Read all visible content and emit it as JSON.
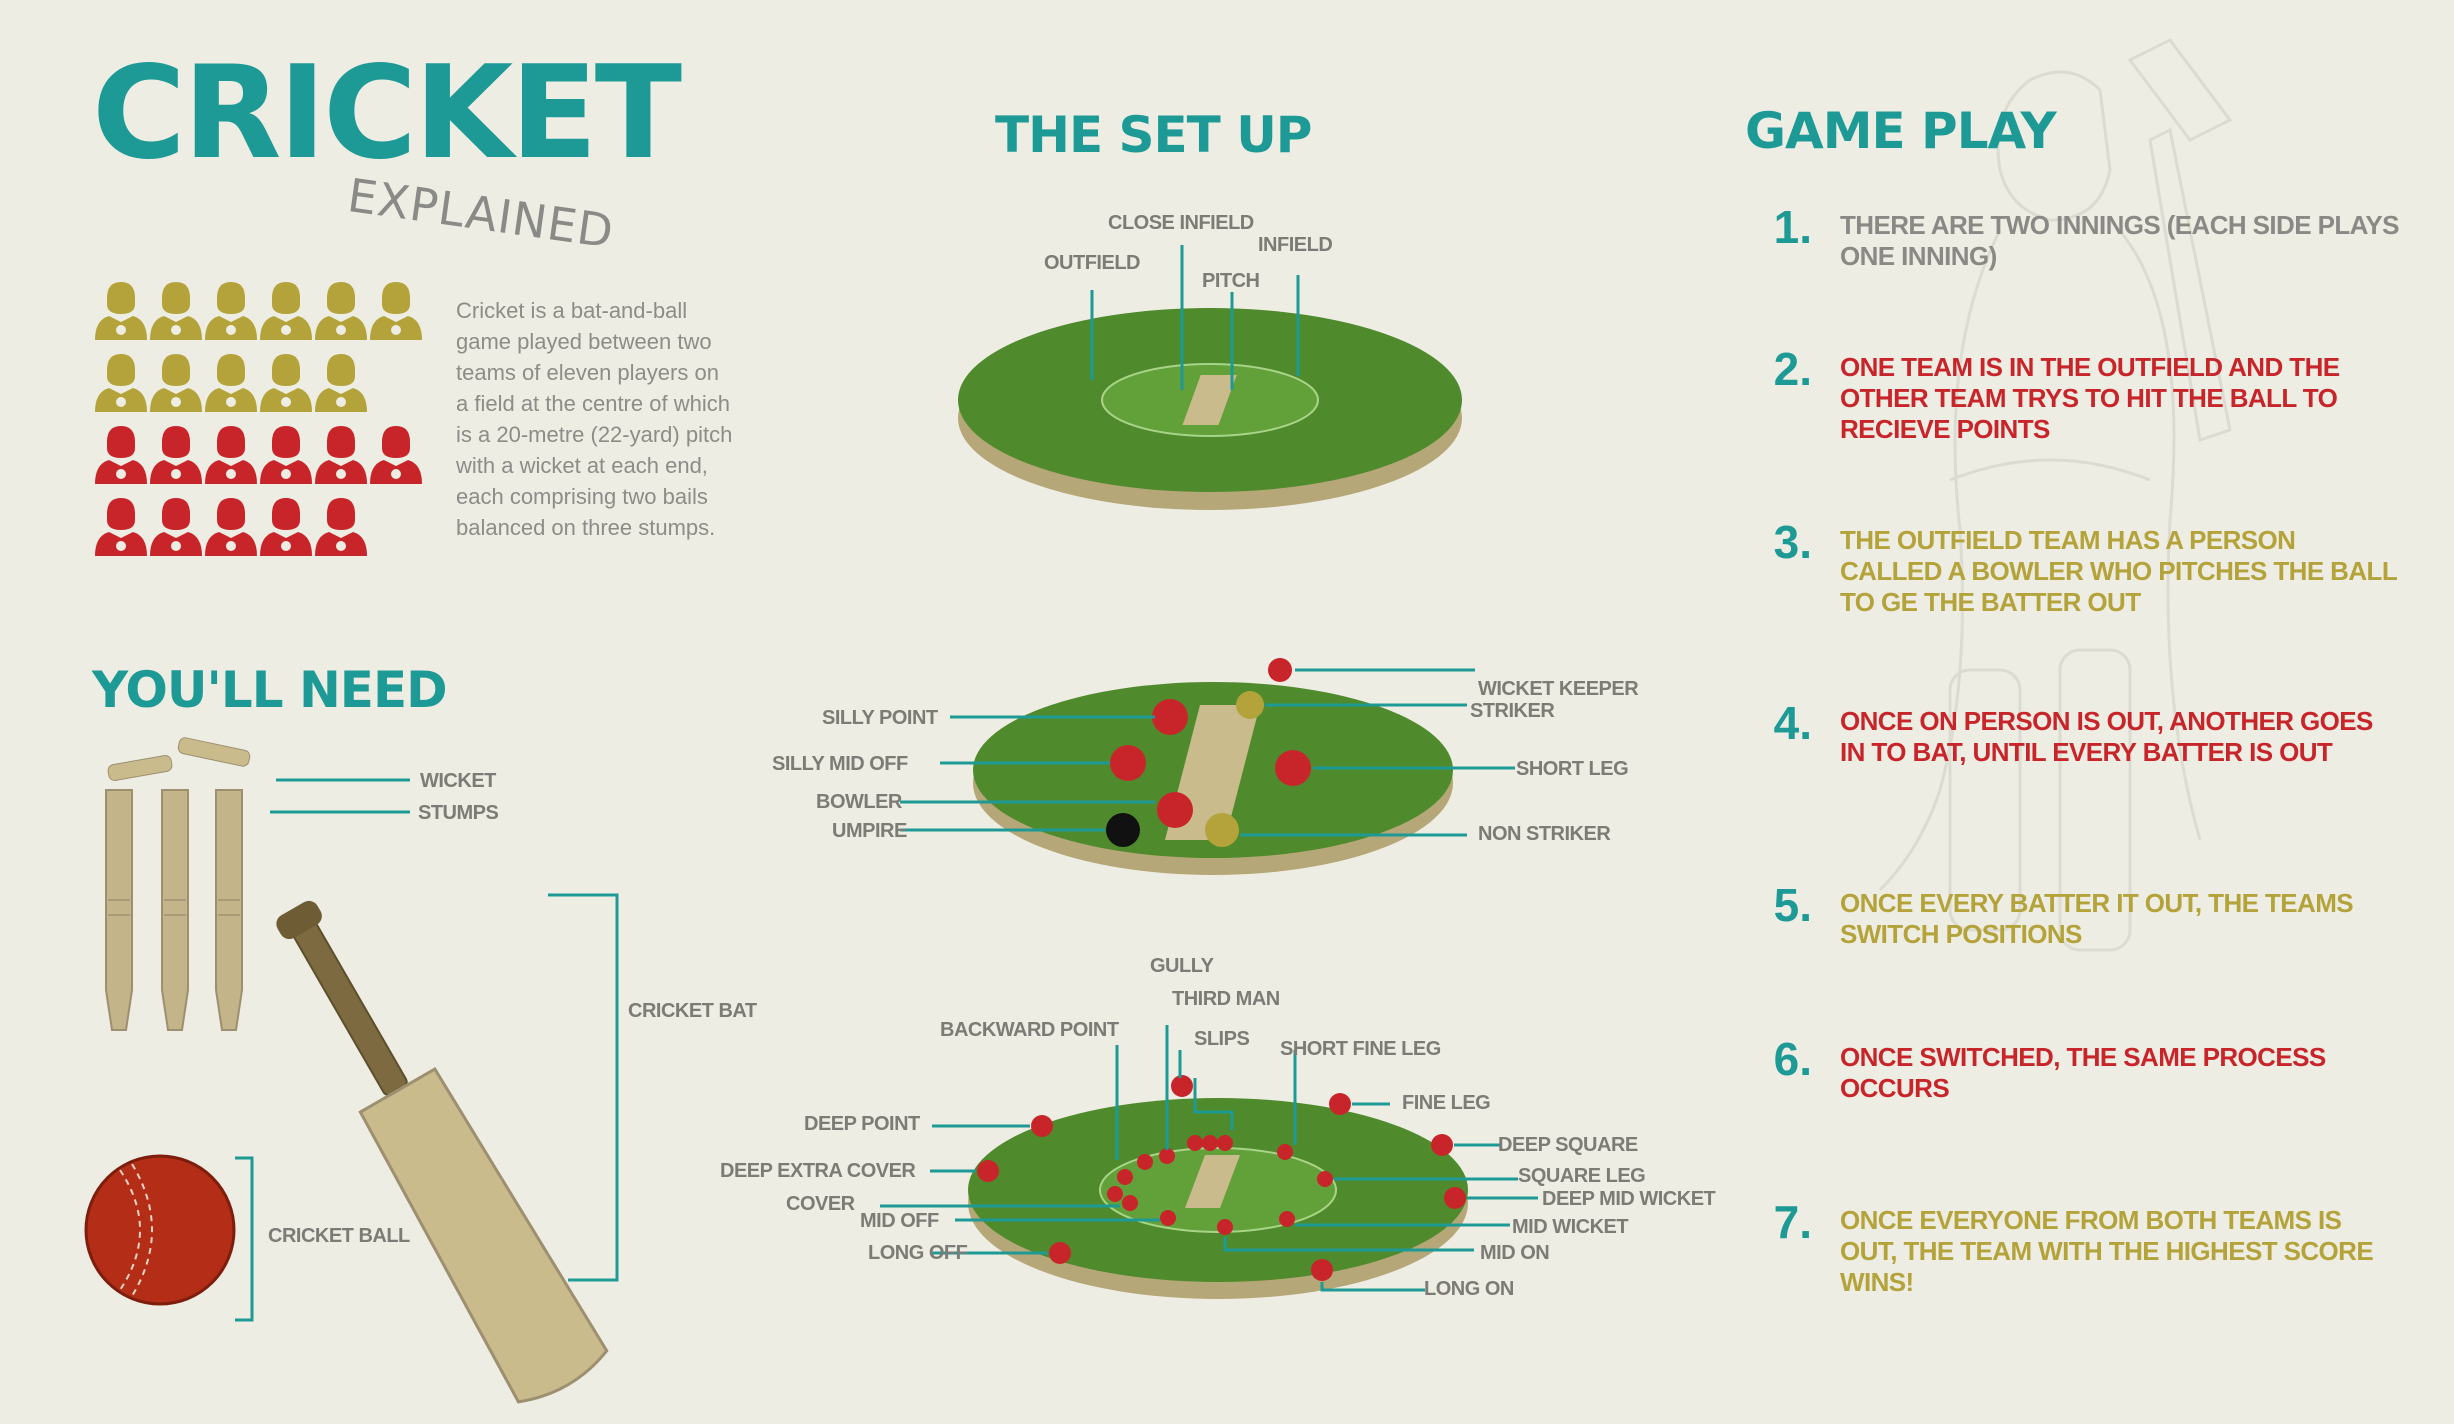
{
  "title": "CRICKET",
  "subtitle": "EXPLAINED",
  "intro": "Cricket is a bat-and-ball game played between two teams of eleven players on a field at the centre of which is a 20-metre (22-yard) pitch with a wicket at each end, each comprising two bails balanced on three stumps.",
  "colors": {
    "teal": "#1e9a96",
    "olive": "#b3a33a",
    "red": "#c8252b",
    "grass": "#4f8a2c",
    "text_grey": "#7c7b76"
  },
  "youll_need": {
    "heading": "YOU'LL NEED",
    "labels": {
      "wicket": "WICKET",
      "stumps": "STUMPS",
      "bat": "CRICKET BAT",
      "ball": "CRICKET BALL"
    }
  },
  "setup": {
    "heading": "THE SET UP",
    "field_labels": {
      "close_infield": "CLOSE INFIELD",
      "infield": "INFIELD",
      "outfield": "OUTFIELD",
      "pitch": "PITCH"
    },
    "player_labels": {
      "silly_point": "SILLY POINT",
      "silly_mid_off": "SILLY MID OFF",
      "bowler": "BOWLER",
      "umpire": "UMPIRE",
      "wicket_keeper": "WICKET KEEPER",
      "striker": "STRIKER",
      "short_leg": "SHORT LEG",
      "non_striker": "NON STRIKER"
    },
    "fielder_labels": {
      "gully": "GULLY",
      "third_man": "THIRD MAN",
      "slips": "SLIPS",
      "backward_point": "BACKWARD POINT",
      "short_fine_leg": "SHORT FINE LEG",
      "fine_leg": "FINE LEG",
      "deep_point": "DEEP POINT",
      "deep_extra_cover": "DEEP EXTRA COVER",
      "cover": "COVER",
      "mid_off": "MID OFF",
      "long_off": "LONG OFF",
      "deep_square": "DEEP SQUARE",
      "square_leg": "SQUARE LEG",
      "deep_mid_wicket": "DEEP MID WICKET",
      "mid_wicket": "MID WICKET",
      "mid_on": "MID ON",
      "long_on": "LONG ON"
    }
  },
  "gameplay": {
    "heading": "GAME PLAY",
    "steps": [
      {
        "num": "1.",
        "text": "THERE ARE TWO INNINGS (EACH SIDE PLAYS ONE INNING)",
        "color": "#8a8985"
      },
      {
        "num": "2.",
        "text": "ONE TEAM IS IN THE OUTFIELD AND THE OTHER TEAM TRYS TO HIT THE BALL TO RECIEVE POINTS",
        "color": "#c8252b"
      },
      {
        "num": "3.",
        "text": "THE OUTFIELD TEAM HAS A PERSON CALLED A BOWLER WHO PITCHES THE BALL TO GE THE BATTER OUT",
        "color": "#b3a33a"
      },
      {
        "num": "4.",
        "text": "ONCE ON PERSON IS OUT, ANOTHER GOES IN TO BAT, UNTIL EVERY BATTER IS OUT",
        "color": "#c8252b"
      },
      {
        "num": "5.",
        "text": "ONCE EVERY BATTER IT OUT, THE TEAMS SWITCH POSITIONS",
        "color": "#b3a33a"
      },
      {
        "num": "6.",
        "text": "ONCE SWITCHED, THE SAME PROCESS OCCURS",
        "color": "#c8252b"
      },
      {
        "num": "7.",
        "text": "ONCE EVERYONE FROM BOTH TEAMS IS OUT, THE TEAM WITH THE HIGHEST SCORE WINS!",
        "color": "#b3a33a"
      }
    ]
  }
}
